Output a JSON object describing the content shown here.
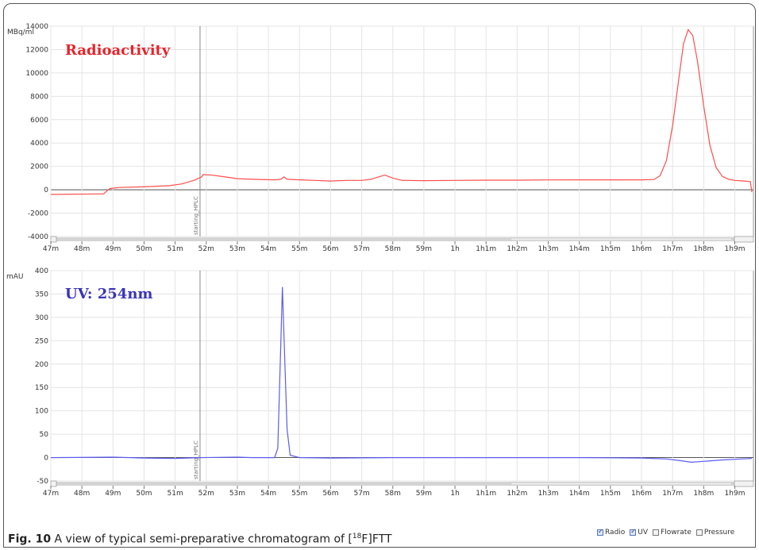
{
  "caption": {
    "label": "Fig. 10",
    "text_before": "A view of typical semi-preparative chromatogram of [",
    "sup": "18",
    "text_after": "F]FTT"
  },
  "legend": [
    {
      "label": "Radio",
      "checked": true
    },
    {
      "label": "UV",
      "checked": true
    },
    {
      "label": "Flowrate",
      "checked": false
    },
    {
      "label": "Pressure",
      "checked": false
    }
  ],
  "chart_data": [
    {
      "type": "line",
      "title": "Radioactivity",
      "ylabel": "MBq/ml",
      "color": "#ff4d4d",
      "xlim": [
        47,
        69.6
      ],
      "ylim": [
        -4000,
        14000
      ],
      "yticks": [
        "-4000",
        "-2000",
        "0",
        "2000",
        "4000",
        "6000",
        "8000",
        "10000",
        "12000",
        "14000"
      ],
      "xticks": [
        "47m",
        "48m",
        "49m",
        "50m",
        "51m",
        "52m",
        "53m",
        "54m",
        "55m",
        "56m",
        "57m",
        "58m",
        "59m",
        "1h",
        "1h1m",
        "1h2m",
        "1h3m",
        "1h4m",
        "1h5m",
        "1h6m",
        "1h7m",
        "1h8m",
        "1h9m"
      ],
      "marker": {
        "x": 51.8,
        "label": "starting_HPLC"
      },
      "points": [
        [
          47.0,
          -400
        ],
        [
          48.7,
          -350
        ],
        [
          48.8,
          -100
        ],
        [
          48.9,
          100
        ],
        [
          49.2,
          200
        ],
        [
          50.0,
          250
        ],
        [
          50.8,
          350
        ],
        [
          51.2,
          500
        ],
        [
          51.6,
          800
        ],
        [
          51.85,
          1100
        ],
        [
          51.9,
          1300
        ],
        [
          52.2,
          1250
        ],
        [
          52.6,
          1100
        ],
        [
          53.0,
          950
        ],
        [
          53.5,
          900
        ],
        [
          54.2,
          850
        ],
        [
          54.4,
          900
        ],
        [
          54.5,
          1100
        ],
        [
          54.6,
          900
        ],
        [
          55.0,
          850
        ],
        [
          55.5,
          800
        ],
        [
          56.0,
          750
        ],
        [
          56.5,
          800
        ],
        [
          57.0,
          800
        ],
        [
          57.3,
          900
        ],
        [
          57.6,
          1150
        ],
        [
          57.75,
          1250
        ],
        [
          58.0,
          1000
        ],
        [
          58.3,
          800
        ],
        [
          59.0,
          780
        ],
        [
          60.0,
          800
        ],
        [
          61.0,
          820
        ],
        [
          62.0,
          820
        ],
        [
          63.0,
          840
        ],
        [
          64.0,
          850
        ],
        [
          65.0,
          850
        ],
        [
          66.0,
          850
        ],
        [
          66.4,
          880
        ],
        [
          66.6,
          1200
        ],
        [
          66.8,
          2500
        ],
        [
          67.0,
          5500
        ],
        [
          67.2,
          9500
        ],
        [
          67.35,
          12500
        ],
        [
          67.5,
          13700
        ],
        [
          67.65,
          13200
        ],
        [
          67.8,
          11000
        ],
        [
          68.0,
          7200
        ],
        [
          68.2,
          3800
        ],
        [
          68.4,
          1900
        ],
        [
          68.6,
          1150
        ],
        [
          68.8,
          900
        ],
        [
          69.0,
          800
        ],
        [
          69.3,
          750
        ],
        [
          69.5,
          700
        ],
        [
          69.55,
          -200
        ]
      ]
    },
    {
      "type": "line",
      "title": "UV: 254nm",
      "ylabel": "mAU",
      "color": "#5b5bf0",
      "xlim": [
        47,
        69.6
      ],
      "ylim": [
        -50,
        400
      ],
      "yticks": [
        "-50",
        "0",
        "50",
        "100",
        "150",
        "200",
        "250",
        "300",
        "350",
        "400"
      ],
      "xticks": [
        "47m",
        "48m",
        "49m",
        "50m",
        "51m",
        "52m",
        "53m",
        "54m",
        "55m",
        "56m",
        "57m",
        "58m",
        "59m",
        "1h",
        "1h1m",
        "1h2m",
        "1h3m",
        "1h4m",
        "1h5m",
        "1h6m",
        "1h7m",
        "1h8m",
        "1h9m"
      ],
      "marker": {
        "x": 51.8,
        "label": "starting_HPLC"
      },
      "points": [
        [
          47.0,
          0
        ],
        [
          49.0,
          1
        ],
        [
          50.0,
          -1
        ],
        [
          51.0,
          -2
        ],
        [
          51.8,
          0
        ],
        [
          53.0,
          1
        ],
        [
          53.5,
          0
        ],
        [
          54.2,
          0
        ],
        [
          54.3,
          20
        ],
        [
          54.4,
          250
        ],
        [
          54.45,
          365
        ],
        [
          54.5,
          260
        ],
        [
          54.6,
          60
        ],
        [
          54.7,
          5
        ],
        [
          55.0,
          0
        ],
        [
          56.0,
          -1
        ],
        [
          58.0,
          0
        ],
        [
          60.0,
          0
        ],
        [
          62.0,
          0
        ],
        [
          64.0,
          0
        ],
        [
          66.0,
          -1
        ],
        [
          66.8,
          -3
        ],
        [
          67.2,
          -6
        ],
        [
          67.6,
          -10
        ],
        [
          68.0,
          -8
        ],
        [
          68.6,
          -5
        ],
        [
          69.2,
          -3
        ],
        [
          69.55,
          -2
        ]
      ]
    }
  ]
}
